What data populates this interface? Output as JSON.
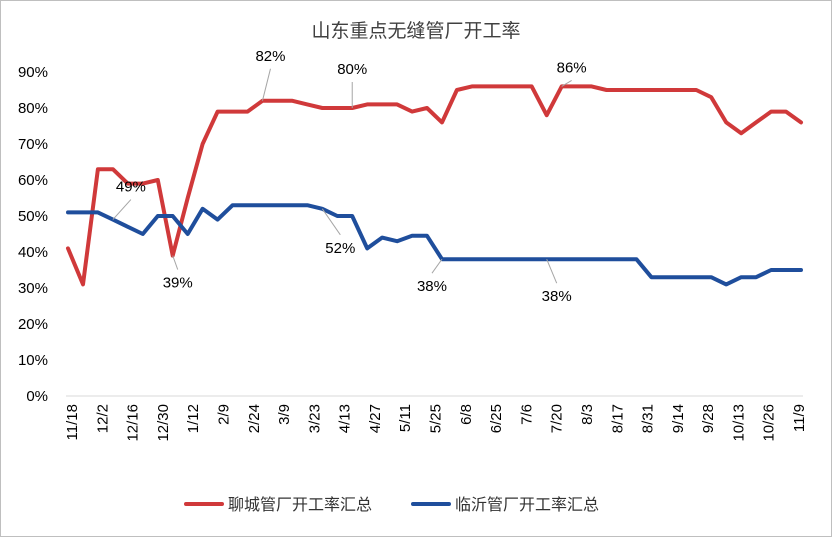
{
  "chart_data": {
    "type": "line",
    "title": "山东重点无缝管厂开工率",
    "ylim": [
      0,
      90
    ],
    "yticks": [
      "0%",
      "10%",
      "20%",
      "30%",
      "40%",
      "50%",
      "60%",
      "70%",
      "80%",
      "90%"
    ],
    "x_labels": [
      "11/18",
      "12/2",
      "12/16",
      "12/30",
      "1/12",
      "2/9",
      "2/24",
      "3/9",
      "3/23",
      "4/13",
      "4/27",
      "5/11",
      "5/25",
      "6/8",
      "6/25",
      "7/6",
      "7/20",
      "8/3",
      "8/17",
      "8/31",
      "9/14",
      "9/28",
      "10/13",
      "10/26",
      "11/9"
    ],
    "series": [
      {
        "name": "聊城管厂开工率汇总",
        "color": "#d0393a",
        "values": [
          41,
          31,
          63,
          63,
          59,
          59,
          60,
          39,
          55,
          70,
          79,
          79,
          79,
          82,
          82,
          82,
          81,
          80,
          80,
          80,
          81,
          81,
          81,
          79,
          80,
          76,
          85,
          86,
          86,
          86,
          86,
          86,
          78,
          86,
          86,
          86,
          85,
          85,
          85,
          85,
          85,
          85,
          85,
          83,
          76,
          73,
          76,
          79,
          79,
          76
        ]
      },
      {
        "name": "临沂管厂开工率汇总",
        "color": "#1f4e9c",
        "values": [
          51,
          51,
          51,
          49,
          47,
          45,
          50,
          50,
          45,
          52,
          49,
          53,
          53,
          53,
          53,
          53,
          53,
          52,
          50,
          50,
          41,
          44,
          43,
          44.5,
          44.5,
          38,
          38,
          38,
          38,
          38,
          38,
          38,
          38,
          38,
          38,
          38,
          38,
          38,
          38,
          33,
          33,
          33,
          33,
          33,
          31,
          33,
          33,
          35,
          35,
          35
        ]
      }
    ],
    "annotations": [
      {
        "text": "49%",
        "series": 1,
        "index": 3
      },
      {
        "text": "39%",
        "series": 0,
        "index": 7
      },
      {
        "text": "82%",
        "series": 0,
        "index": 13
      },
      {
        "text": "80%",
        "series": 0,
        "index": 19
      },
      {
        "text": "52%",
        "series": 1,
        "index": 17
      },
      {
        "text": "38%",
        "series": 1,
        "index": 25
      },
      {
        "text": "38%",
        "series": 1,
        "index": 32
      },
      {
        "text": "86%",
        "series": 0,
        "index": 33
      }
    ],
    "legend": "bottom"
  }
}
